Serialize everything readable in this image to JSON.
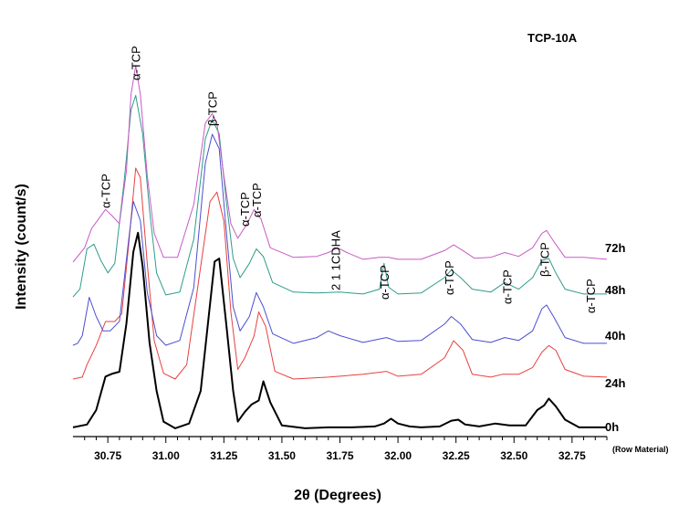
{
  "chart_data": {
    "type": "line",
    "title": "TCP-10A",
    "xlabel": "2θ (Degrees)",
    "ylabel": "Intensity (count/s)",
    "xlim": [
      30.6,
      32.9
    ],
    "x_ticks": [
      "30.75",
      "31.00",
      "31.25",
      "31.50",
      "31.75",
      "32.00",
      "32.25",
      "32.50",
      "32.75"
    ],
    "y_ticks_shown": false,
    "sub_note": "(Row Material)",
    "series": [
      {
        "name": "0h",
        "color": "#000000",
        "points": [
          [
            30.6,
            2
          ],
          [
            30.66,
            5
          ],
          [
            30.7,
            20
          ],
          [
            30.74,
            55
          ],
          [
            30.77,
            58
          ],
          [
            30.8,
            60
          ],
          [
            30.83,
            110
          ],
          [
            30.86,
            185
          ],
          [
            30.88,
            205
          ],
          [
            30.9,
            170
          ],
          [
            30.93,
            90
          ],
          [
            30.96,
            40
          ],
          [
            30.99,
            8
          ],
          [
            31.04,
            1
          ],
          [
            31.1,
            6
          ],
          [
            31.15,
            40
          ],
          [
            31.19,
            130
          ],
          [
            31.21,
            175
          ],
          [
            31.23,
            178
          ],
          [
            31.26,
            110
          ],
          [
            31.29,
            40
          ],
          [
            31.31,
            8
          ],
          [
            31.34,
            18
          ],
          [
            31.37,
            26
          ],
          [
            31.4,
            30
          ],
          [
            31.42,
            50
          ],
          [
            31.45,
            28
          ],
          [
            31.5,
            4
          ],
          [
            31.6,
            1
          ],
          [
            31.7,
            2
          ],
          [
            31.8,
            2
          ],
          [
            31.9,
            3
          ],
          [
            31.94,
            6
          ],
          [
            31.97,
            11
          ],
          [
            32.0,
            6
          ],
          [
            32.05,
            3
          ],
          [
            32.1,
            2
          ],
          [
            32.18,
            3
          ],
          [
            32.23,
            9
          ],
          [
            32.26,
            10
          ],
          [
            32.29,
            5
          ],
          [
            32.35,
            3
          ],
          [
            32.42,
            6
          ],
          [
            32.48,
            4
          ],
          [
            32.55,
            4
          ],
          [
            32.6,
            20
          ],
          [
            32.63,
            25
          ],
          [
            32.65,
            32
          ],
          [
            32.68,
            24
          ],
          [
            32.72,
            10
          ],
          [
            32.78,
            2
          ],
          [
            32.9,
            2
          ]
        ]
      },
      {
        "name": "24h",
        "color": "#e8403f",
        "points": [
          [
            30.6,
            0
          ],
          [
            30.64,
            2
          ],
          [
            30.66,
            15
          ],
          [
            30.7,
            35
          ],
          [
            30.74,
            60
          ],
          [
            30.78,
            60
          ],
          [
            30.81,
            68
          ],
          [
            30.84,
            140
          ],
          [
            30.87,
            220
          ],
          [
            30.89,
            210
          ],
          [
            30.92,
            120
          ],
          [
            30.95,
            40
          ],
          [
            30.99,
            6
          ],
          [
            31.04,
            0
          ],
          [
            31.09,
            15
          ],
          [
            31.14,
            100
          ],
          [
            31.19,
            185
          ],
          [
            31.22,
            195
          ],
          [
            31.25,
            165
          ],
          [
            31.28,
            70
          ],
          [
            31.31,
            10
          ],
          [
            31.34,
            22
          ],
          [
            31.38,
            45
          ],
          [
            31.4,
            70
          ],
          [
            31.43,
            55
          ],
          [
            31.47,
            8
          ],
          [
            31.55,
            0
          ],
          [
            31.7,
            2
          ],
          [
            31.85,
            5
          ],
          [
            31.95,
            8
          ],
          [
            32.0,
            3
          ],
          [
            32.1,
            5
          ],
          [
            32.2,
            22
          ],
          [
            32.24,
            40
          ],
          [
            32.28,
            30
          ],
          [
            32.32,
            5
          ],
          [
            32.4,
            2
          ],
          [
            32.45,
            5
          ],
          [
            32.52,
            5
          ],
          [
            32.58,
            12
          ],
          [
            32.62,
            28
          ],
          [
            32.65,
            35
          ],
          [
            32.68,
            30
          ],
          [
            32.72,
            10
          ],
          [
            32.8,
            3
          ],
          [
            32.9,
            2
          ]
        ]
      },
      {
        "name": "40h",
        "color": "#4a4ed0",
        "points": [
          [
            30.6,
            0
          ],
          [
            30.62,
            2
          ],
          [
            30.64,
            10
          ],
          [
            30.67,
            50
          ],
          [
            30.7,
            30
          ],
          [
            30.73,
            15
          ],
          [
            30.76,
            15
          ],
          [
            30.8,
            25
          ],
          [
            30.84,
            110
          ],
          [
            30.86,
            150
          ],
          [
            30.89,
            130
          ],
          [
            30.92,
            55
          ],
          [
            30.96,
            10
          ],
          [
            31.0,
            0
          ],
          [
            31.06,
            5
          ],
          [
            31.12,
            60
          ],
          [
            31.17,
            190
          ],
          [
            31.2,
            220
          ],
          [
            31.23,
            205
          ],
          [
            31.26,
            120
          ],
          [
            31.29,
            40
          ],
          [
            31.32,
            15
          ],
          [
            31.36,
            30
          ],
          [
            31.39,
            55
          ],
          [
            31.42,
            40
          ],
          [
            31.46,
            12
          ],
          [
            31.55,
            2
          ],
          [
            31.65,
            8
          ],
          [
            31.7,
            15
          ],
          [
            31.75,
            10
          ],
          [
            31.85,
            3
          ],
          [
            31.95,
            8
          ],
          [
            32.0,
            4
          ],
          [
            32.1,
            5
          ],
          [
            32.2,
            22
          ],
          [
            32.23,
            30
          ],
          [
            32.27,
            22
          ],
          [
            32.32,
            6
          ],
          [
            32.4,
            3
          ],
          [
            32.46,
            8
          ],
          [
            32.52,
            5
          ],
          [
            32.58,
            15
          ],
          [
            32.62,
            38
          ],
          [
            32.64,
            42
          ],
          [
            32.67,
            30
          ],
          [
            32.72,
            8
          ],
          [
            32.8,
            2
          ],
          [
            32.9,
            2
          ]
        ]
      },
      {
        "name": "48h",
        "color": "#2f9b8a",
        "points": [
          [
            30.6,
            0
          ],
          [
            30.63,
            8
          ],
          [
            30.66,
            50
          ],
          [
            30.69,
            55
          ],
          [
            30.72,
            38
          ],
          [
            30.75,
            25
          ],
          [
            30.78,
            35
          ],
          [
            30.82,
            120
          ],
          [
            30.85,
            195
          ],
          [
            30.87,
            210
          ],
          [
            30.9,
            170
          ],
          [
            30.93,
            90
          ],
          [
            30.96,
            25
          ],
          [
            31.0,
            2
          ],
          [
            31.06,
            5
          ],
          [
            31.12,
            60
          ],
          [
            31.17,
            165
          ],
          [
            31.2,
            185
          ],
          [
            31.23,
            170
          ],
          [
            31.26,
            100
          ],
          [
            31.29,
            40
          ],
          [
            31.32,
            20
          ],
          [
            31.36,
            35
          ],
          [
            31.39,
            50
          ],
          [
            31.42,
            42
          ],
          [
            31.46,
            15
          ],
          [
            31.55,
            5
          ],
          [
            31.65,
            4
          ],
          [
            31.75,
            5
          ],
          [
            31.85,
            3
          ],
          [
            31.92,
            8
          ],
          [
            31.94,
            35
          ],
          [
            31.96,
            10
          ],
          [
            32.0,
            3
          ],
          [
            32.1,
            4
          ],
          [
            32.2,
            20
          ],
          [
            32.23,
            28
          ],
          [
            32.27,
            20
          ],
          [
            32.32,
            8
          ],
          [
            32.4,
            5
          ],
          [
            32.46,
            15
          ],
          [
            32.52,
            8
          ],
          [
            32.58,
            20
          ],
          [
            32.62,
            38
          ],
          [
            32.65,
            40
          ],
          [
            32.68,
            25
          ],
          [
            32.72,
            8
          ],
          [
            32.8,
            3
          ],
          [
            32.9,
            3
          ]
        ]
      },
      {
        "name": "72h",
        "color": "#c75bc6",
        "points": [
          [
            30.6,
            0
          ],
          [
            30.65,
            15
          ],
          [
            30.68,
            35
          ],
          [
            30.71,
            45
          ],
          [
            30.74,
            55
          ],
          [
            30.77,
            48
          ],
          [
            30.8,
            40
          ],
          [
            30.83,
            95
          ],
          [
            30.85,
            175
          ],
          [
            30.87,
            205
          ],
          [
            30.89,
            175
          ],
          [
            30.92,
            90
          ],
          [
            30.95,
            30
          ],
          [
            30.99,
            5
          ],
          [
            31.05,
            5
          ],
          [
            31.12,
            60
          ],
          [
            31.17,
            145
          ],
          [
            31.2,
            155
          ],
          [
            31.22,
            145
          ],
          [
            31.25,
            90
          ],
          [
            31.28,
            40
          ],
          [
            31.31,
            25
          ],
          [
            31.35,
            40
          ],
          [
            31.38,
            55
          ],
          [
            31.41,
            45
          ],
          [
            31.45,
            15
          ],
          [
            31.55,
            5
          ],
          [
            31.65,
            6
          ],
          [
            31.7,
            10
          ],
          [
            31.74,
            15
          ],
          [
            31.78,
            10
          ],
          [
            31.85,
            3
          ],
          [
            31.92,
            5
          ],
          [
            31.96,
            5
          ],
          [
            32.0,
            3
          ],
          [
            32.1,
            3
          ],
          [
            32.2,
            12
          ],
          [
            32.24,
            18
          ],
          [
            32.28,
            12
          ],
          [
            32.33,
            4
          ],
          [
            32.4,
            5
          ],
          [
            32.46,
            10
          ],
          [
            32.52,
            6
          ],
          [
            32.58,
            15
          ],
          [
            32.62,
            30
          ],
          [
            32.64,
            33
          ],
          [
            32.67,
            22
          ],
          [
            32.72,
            5
          ],
          [
            32.8,
            5
          ],
          [
            32.9,
            3
          ]
        ]
      }
    ],
    "peak_labels": [
      {
        "text": "α-TCP",
        "x": 30.74,
        "level": 270
      },
      {
        "text": "α-TCP",
        "x": 30.87,
        "level": 410
      },
      {
        "text": "β-TCP",
        "x": 31.2,
        "level": 360
      },
      {
        "text": "α-TCP",
        "x": 31.34,
        "level": 250
      },
      {
        "text": "α-TCP",
        "x": 31.39,
        "level": 260
      },
      {
        "text": "2 1 1CDHA",
        "x": 31.73,
        "level": 180
      },
      {
        "text": "α-TCP",
        "x": 31.94,
        "level": 170
      },
      {
        "text": "α-TCP",
        "x": 32.22,
        "level": 175
      },
      {
        "text": "α-TCP",
        "x": 32.47,
        "level": 165
      },
      {
        "text": "β-TCP",
        "x": 32.63,
        "level": 195
      },
      {
        "text": "α-TCP",
        "x": 32.83,
        "level": 155
      }
    ]
  }
}
